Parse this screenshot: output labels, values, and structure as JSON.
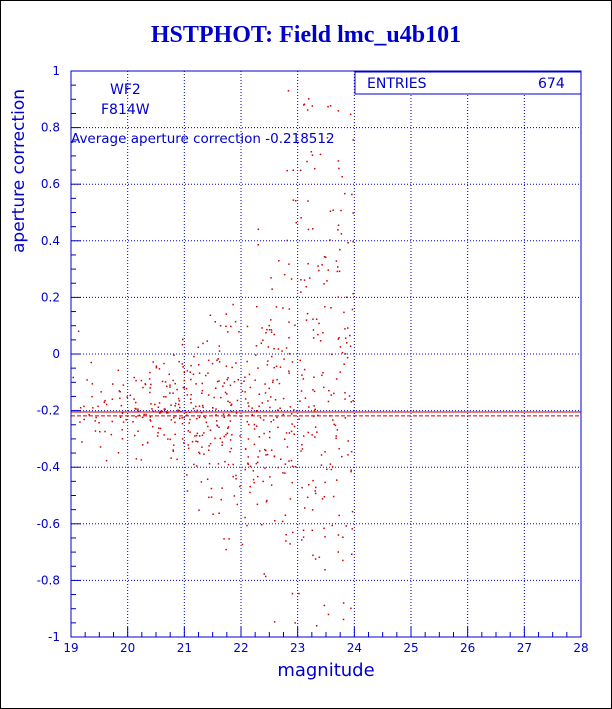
{
  "colors": {
    "axis": "#0000cc",
    "points": "#cc0000",
    "grid": "#0000cc",
    "title": "#0000cc"
  },
  "chart_data": {
    "type": "scatter",
    "title": "HSTPHOT: Field lmc_u4b101",
    "xlabel": "magnitude",
    "ylabel": "aperture correction",
    "xlim": [
      19,
      28
    ],
    "ylim": [
      -1,
      1
    ],
    "xticks": [
      "19",
      "20",
      "21",
      "22",
      "23",
      "24",
      "25",
      "26",
      "27",
      "28"
    ],
    "yticks": [
      "-1",
      "-0.8",
      "-0.6",
      "-0.4",
      "-0.2",
      "0",
      "0.2",
      "0.4",
      "0.6",
      "0.8",
      "1"
    ],
    "grid": true,
    "annotations": {
      "chip": "WF2",
      "filter": "F814W",
      "average_label": "Average aperture correction",
      "average_value": -0.218512
    },
    "stats": {
      "label": "ENTRIES",
      "value": "674"
    },
    "reference_lines": [
      {
        "y": -0.218512,
        "style": "dashed"
      },
      {
        "y": -0.205,
        "style": "solid"
      }
    ],
    "sample": {
      "count": 674,
      "seed": 20250101
    }
  }
}
